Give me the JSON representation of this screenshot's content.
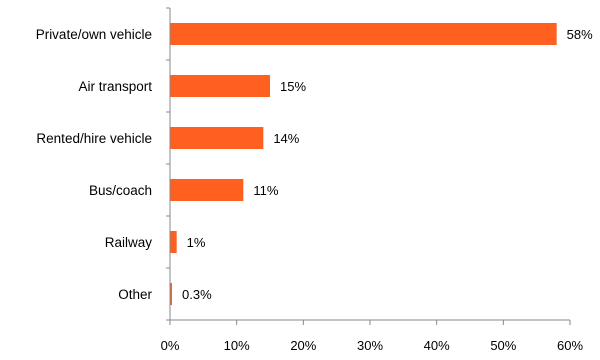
{
  "chart_data": {
    "type": "bar",
    "orientation": "horizontal",
    "title": "",
    "xlabel": "",
    "ylabel": "",
    "categories": [
      "Private/own vehicle",
      "Air transport",
      "Rented/hire vehicle",
      "Bus/coach",
      "Railway",
      "Other"
    ],
    "values": [
      58,
      15,
      14,
      11,
      1,
      0.3
    ],
    "data_labels": [
      "58%",
      "15%",
      "14%",
      "11%",
      "1%",
      "0.3%"
    ],
    "xlim": [
      0,
      60
    ],
    "x_ticks": [
      0,
      10,
      20,
      30,
      40,
      50,
      60
    ],
    "x_tick_labels": [
      "0%",
      "10%",
      "20%",
      "30%",
      "40%",
      "50%",
      "60%"
    ],
    "grid": false,
    "legend": "none",
    "bar_color": "#FF5F1F"
  }
}
